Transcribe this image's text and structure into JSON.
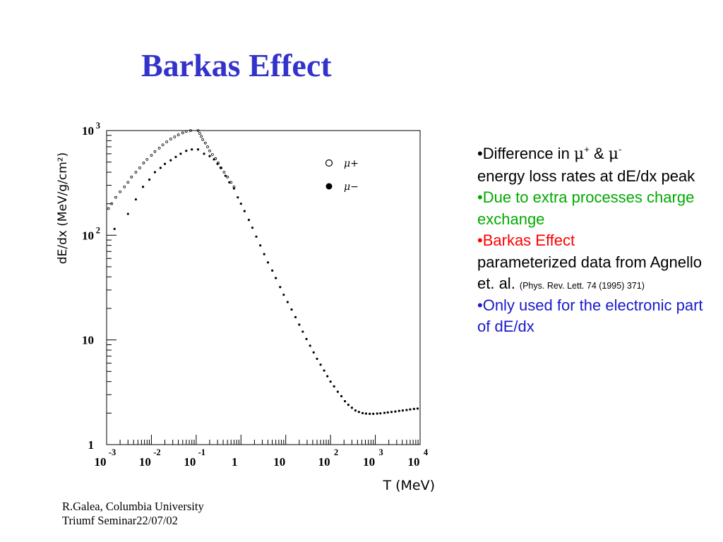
{
  "title": "Barkas Effect",
  "bullets": {
    "b1": {
      "prefix": "•Difference in ",
      "mu": "μ",
      "plus": "+",
      "amp": " & ",
      "minus": "-",
      "rest": "energy loss rates at dE/dx peak"
    },
    "b2": "•Due to extra processes charge exchange",
    "b3": {
      "red": "•Barkas Effect",
      "black": "parameterized data from Agnello et. al. ",
      "ref": "(Phys. Rev. Lett. 74 (1995) 371)"
    },
    "b4": "•Only used for the electronic part of dE/dx"
  },
  "footer": {
    "line1": "R.Galea, Columbia University",
    "line2": "Triumf Seminar22/07/02"
  },
  "colors": {
    "title": "#3333cc",
    "green": "#00aa00",
    "red": "#ff0000",
    "blue": "#1a1acc"
  },
  "chart_data": {
    "type": "scatter",
    "xlabel": "T (MeV)",
    "ylabel": "dE/dx (MeV/g/cm²)",
    "xscale": "log",
    "yscale": "log",
    "xlim": [
      0.001,
      10000
    ],
    "ylim": [
      1,
      1000
    ],
    "xticks": [
      {
        "base": "10",
        "exp": "-3"
      },
      {
        "base": "10",
        "exp": "-2"
      },
      {
        "base": "10",
        "exp": "-1"
      },
      {
        "base": "1",
        "exp": ""
      },
      {
        "base": "10",
        "exp": ""
      },
      {
        "base": "10",
        "exp": "2"
      },
      {
        "base": "10",
        "exp": "3"
      },
      {
        "base": "10",
        "exp": "4"
      }
    ],
    "yticks": [
      {
        "base": "1",
        "exp": ""
      },
      {
        "base": "10",
        "exp": ""
      },
      {
        "base": "10",
        "exp": "2"
      },
      {
        "base": "10",
        "exp": "3"
      }
    ],
    "legend": {
      "placement": "top-right",
      "mu_plus": "μ+",
      "mu_minus": "μ−"
    },
    "series": [
      {
        "name": "μ+",
        "marker": "open-circle",
        "points": [
          [
            0.0011,
            180
          ],
          [
            0.0013,
            200
          ],
          [
            0.0016,
            230
          ],
          [
            0.002,
            260
          ],
          [
            0.0025,
            290
          ],
          [
            0.003,
            320
          ],
          [
            0.0036,
            360
          ],
          [
            0.0045,
            400
          ],
          [
            0.0055,
            440
          ],
          [
            0.0067,
            490
          ],
          [
            0.008,
            530
          ],
          [
            0.01,
            580
          ],
          [
            0.012,
            630
          ],
          [
            0.015,
            680
          ],
          [
            0.018,
            730
          ],
          [
            0.022,
            780
          ],
          [
            0.027,
            830
          ],
          [
            0.033,
            870
          ],
          [
            0.04,
            910
          ],
          [
            0.05,
            950
          ],
          [
            0.06,
            980
          ],
          [
            0.075,
            1000
          ],
          [
            0.11,
            1000
          ],
          [
            0.12,
            940
          ],
          [
            0.13,
            880
          ],
          [
            0.14,
            820
          ],
          [
            0.16,
            760
          ],
          [
            0.18,
            700
          ],
          [
            0.2,
            640
          ],
          [
            0.23,
            590
          ],
          [
            0.27,
            540
          ],
          [
            0.31,
            490
          ],
          [
            0.36,
            440
          ],
          [
            0.42,
            400
          ],
          [
            0.5,
            360
          ],
          [
            0.6,
            320
          ],
          [
            0.7,
            290
          ]
        ]
      },
      {
        "name": "μ−",
        "marker": "filled-circle",
        "points": [
          [
            0.0015,
            115
          ],
          [
            0.003,
            160
          ],
          [
            0.0045,
            220
          ],
          [
            0.0065,
            290
          ],
          [
            0.009,
            340
          ],
          [
            0.012,
            400
          ],
          [
            0.016,
            440
          ],
          [
            0.02,
            480
          ],
          [
            0.027,
            520
          ],
          [
            0.035,
            560
          ],
          [
            0.045,
            600
          ],
          [
            0.06,
            640
          ],
          [
            0.08,
            660
          ],
          [
            0.11,
            660
          ],
          [
            0.15,
            600
          ],
          [
            0.2,
            570
          ],
          [
            0.25,
            530
          ],
          [
            0.3,
            480
          ],
          [
            0.35,
            440
          ],
          [
            0.45,
            370
          ],
          [
            0.55,
            320
          ],
          [
            0.7,
            280
          ],
          [
            0.85,
            230
          ],
          [
            1,
            200
          ],
          [
            1.2,
            170
          ],
          [
            1.5,
            140
          ],
          [
            1.8,
            118
          ],
          [
            2.2,
            97
          ],
          [
            2.7,
            80
          ],
          [
            3.3,
            66
          ],
          [
            4,
            55
          ],
          [
            5,
            46
          ],
          [
            6,
            39
          ],
          [
            7.5,
            32
          ],
          [
            9,
            27
          ],
          [
            11,
            23
          ],
          [
            13.5,
            19.5
          ],
          [
            16.5,
            16.5
          ],
          [
            20,
            14
          ],
          [
            24,
            12
          ],
          [
            29,
            10.2
          ],
          [
            35,
            8.8
          ],
          [
            42,
            7.6
          ],
          [
            50,
            6.6
          ],
          [
            60,
            5.8
          ],
          [
            72,
            5.1
          ],
          [
            85,
            4.5
          ],
          [
            100,
            4
          ],
          [
            120,
            3.6
          ],
          [
            145,
            3.2
          ],
          [
            175,
            2.9
          ],
          [
            210,
            2.6
          ],
          [
            250,
            2.4
          ],
          [
            300,
            2.25
          ],
          [
            360,
            2.12
          ],
          [
            430,
            2.05
          ],
          [
            520,
            2
          ],
          [
            620,
            1.98
          ],
          [
            750,
            1.97
          ],
          [
            900,
            1.97
          ],
          [
            1100,
            1.98
          ],
          [
            1300,
            1.99
          ],
          [
            1600,
            2.01
          ],
          [
            1900,
            2.03
          ],
          [
            2300,
            2.05
          ],
          [
            2800,
            2.07
          ],
          [
            3400,
            2.1
          ],
          [
            4100,
            2.12
          ],
          [
            5000,
            2.14
          ],
          [
            6000,
            2.17
          ],
          [
            7300,
            2.19
          ],
          [
            8800,
            2.21
          ]
        ]
      }
    ]
  }
}
